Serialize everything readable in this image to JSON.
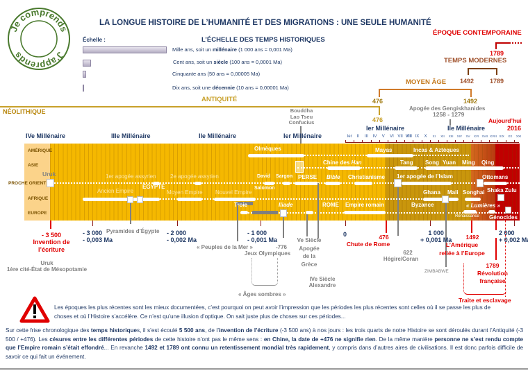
{
  "logo": {
    "top_text": "Je comprends",
    "bottom_text": "J'apprends",
    "color": "#4a7a2e"
  },
  "title": "LA LONGUE HISTOIRE DE L’HUMANITÉ ET DES MIGRATIONS : UNE SEULE HUMANITÉ",
  "scale": {
    "label": "Échelle :",
    "heading": "L’ÉCHELLE DES TEMPS HISTORIQUES",
    "items": [
      {
        "pre": "Mille ans, soit un ",
        "bold": "millénaire",
        "post": " (1 000 ans = 0,001 Ma)"
      },
      {
        "pre": "Cent ans, soit un ",
        "bold": "siècle",
        "post": " (100 ans = 0,0001 Ma)"
      },
      {
        "pre": "Cinquante ans (50 ans = 0,00005 Ma)",
        "bold": "",
        "post": ""
      },
      {
        "pre": "Dix ans, soit une ",
        "bold": "décennie",
        "post": " (10 ans = 0,00001 Ma)"
      }
    ]
  },
  "periods": {
    "contemporaine": {
      "label": "ÉPOQUE CONTEMPORAINE",
      "start": "1789"
    },
    "modernes": {
      "label": "TEMPS MODERNES",
      "start": "1492",
      "end": "1789"
    },
    "moyen_age": {
      "label": "MOYEN ÂGE",
      "start": "476",
      "end": "1492"
    },
    "antiquite": {
      "label": "ANTIQUITÉ",
      "end": "476"
    },
    "neolithique": {
      "label": "NÉOLITHIQUE"
    }
  },
  "top_notes": {
    "gengis": "Apogée des Gengiskhanides",
    "gengis_dates": "1258 - 1279",
    "bouddha": "Bouddha",
    "lao": "Lao Tseu",
    "confucius": "Confucius",
    "today": "Aujourd’hui",
    "today_year": "2016"
  },
  "millennia": [
    "IVe Millénaire",
    "IIIe Millénaire",
    "IIe Millénaire",
    "Ier Millénaire",
    "Ier Millénaire",
    "IIe Millénaire"
  ],
  "centuries": [
    "Ier",
    "II",
    "III",
    "IV",
    "V",
    "VI",
    "VII",
    "VIII",
    "IX",
    "X",
    "XI",
    "XII",
    "XIII",
    "XIV",
    "XV",
    "XVI",
    "XVII",
    "XVIII",
    "XIX",
    "XX",
    "XXI"
  ],
  "regions": [
    "AMÉRIQUE",
    "ASIE",
    "PROCHE ORIENT",
    "AFRIQUE",
    "EUROPE"
  ],
  "band": {
    "colors": {
      "neolithic": "#fbd38a",
      "antiquity": "#f5b800",
      "middle_ages": "#c9960c",
      "modern": "#d46a1e",
      "contemporary": "#c00000"
    },
    "labels": {
      "olmeques": "Olmèques",
      "mayas": "Mayas",
      "incas": "Incas &  Aztèques",
      "chine": "Chine des ",
      "han": "Han",
      "tang": "Tang",
      "song": "Song",
      "yuan": "Yuan",
      "ming": "Ming",
      "qing": "Qing",
      "uruk": "Uruk",
      "assyr1": "1er apogée assyrien",
      "assyr2": "2e apogée assyrien",
      "david": "David",
      "sargon": "Sargon",
      "perse": "PERSE",
      "bible": "Bible",
      "christ": "Christianisme",
      "islam": "1er apogée de l’Islam",
      "ottomans": "Ottomans",
      "salomon": "Salomon",
      "ancien": "Ancien Empire",
      "egypte": "ÉGYPTE",
      "moyen": "Moyen Empire",
      "nouvel": "Nouvel Empire",
      "ghana": "Ghana",
      "mali": "Mali",
      "songhai": "Songhai",
      "shaka": "Shaka Zulu",
      "troie": "Troie",
      "iliade": "Iliade",
      "rome": "ROME",
      "empire_romain": "Empire romain",
      "byzance": "Byzance",
      "lumieres": "« Lumières »",
      "renaissance": "Renaissance",
      "genocides": "Génocides"
    }
  },
  "axis": {
    "m3500": "- 3 500",
    "ecriture1": "Invention de",
    "ecriture2": "l’écriture",
    "uruk": "Uruk",
    "uruk2": "1ère cité-État de Mésopotamie",
    "m3000": "- 3 000",
    "m3000ma": "- 0,003 Ma",
    "pyramides": "Pyramides d’Égypte",
    "m2000": "- 2 000",
    "m2000ma": "- 0,002 Ma",
    "peuples": "« Peuples de la Mer »",
    "m1000": "- 1 000",
    "m1000ma": "- 0,001 Ma",
    "m776": "-776",
    "jo": "Jeux Olympiques",
    "ages": "« Âges sombres »",
    "v1": "Ve Siècle",
    "v2": "Apogée",
    "v3": "de la",
    "v4": "Grèce",
    "iv1": "IVe Siècle",
    "iv2": "Alexandre",
    "zero": "0",
    "y476": "476",
    "rome": "Chute de Rome",
    "y622": "622",
    "hegire": "Hégire/Coran",
    "p1000": "1 000",
    "p1000ma": "+ 0,001 Ma",
    "zimbabwe": "ZIMBABWE",
    "y1492": "1492",
    "amerique1": "L’Amérique",
    "amerique2": "reliée à l’Europe",
    "p2000": "2 000",
    "p2000ma": "+ 0,002 Ma",
    "y1789": "1789",
    "rev1": "Révolution",
    "rev2": "française",
    "traite": "Traite et esclavage"
  },
  "warning": [
    {
      "t": "Les époques les plus récentes sont les mieux documentées,  c’est pourquoi on peut avoir l’impression que les périodes les plus récentes sont celles où il se passe les plus de choses et où l’Histoire s’accélère. Ce n’est qu’une  illusion d’optique.  On sait juste plus de choses sur ces périodes...",
      "b": false
    }
  ],
  "summary": [
    {
      "t": "Sur cette frise chronologique des ",
      "b": false
    },
    {
      "t": "temps historique",
      "b": true
    },
    {
      "t": "s, il s’est écoulé ",
      "b": false
    },
    {
      "t": "5 500 ans",
      "b": true
    },
    {
      "t": ", de l’",
      "b": false
    },
    {
      "t": "invention de l’écriture",
      "b": true
    },
    {
      "t": " (-3 500 ans) à nos jours : les trois quarts de notre Histoire se sont déroulés durant l’Antiquité (-3 500 / +476). Les ",
      "b": false
    },
    {
      "t": "césures entre les différentes périodes",
      "b": true
    },
    {
      "t": " de cette histoire n’ont pas le même sens : ",
      "b": false
    },
    {
      "t": "en Chine, la date de +476 ne signifie rien",
      "b": true
    },
    {
      "t": ".  De la même manière ",
      "b": false
    },
    {
      "t": "personne ne s’est rendu compte que l’Empire romain s’était effondré",
      "b": true
    },
    {
      "t": "... En revanche ",
      "b": false
    },
    {
      "t": "1492 et 1789 ont connu un retentissement mondial très rapidement",
      "b": true
    },
    {
      "t": ", y compris dans d’autres aires de civilisations. Il est donc parfois difficile de savoir ce qui fait un événement.",
      "b": false
    }
  ]
}
